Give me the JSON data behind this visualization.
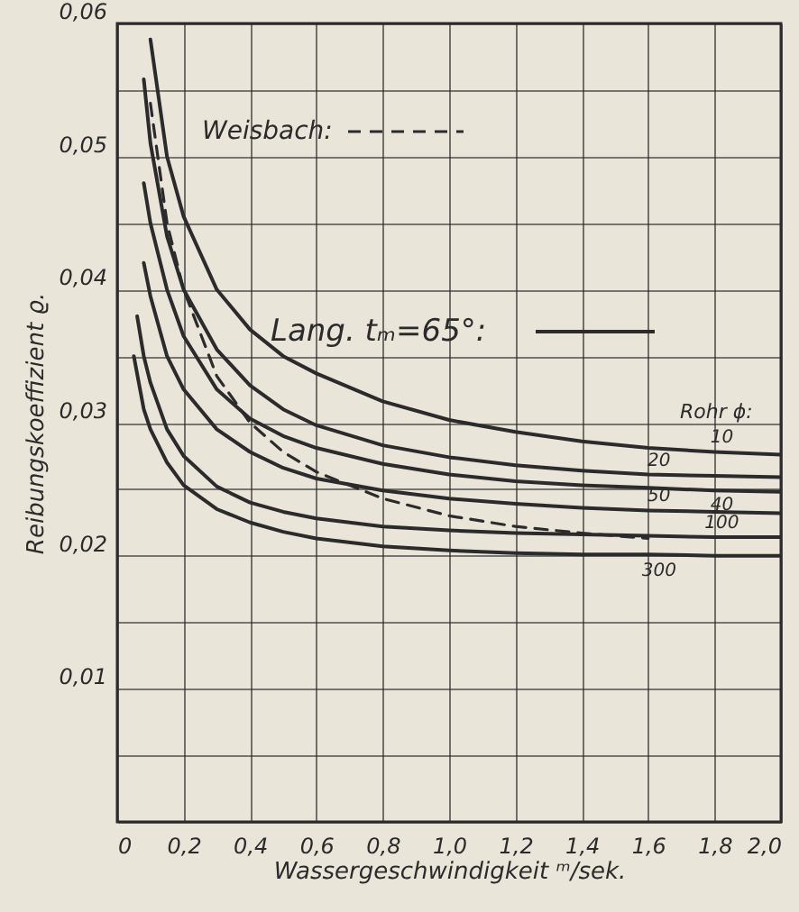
{
  "chart_data": {
    "type": "line",
    "xlabel": "Wassergeschwindigkeit ᵐ/sek.",
    "ylabel": "Reibungskoeffizient ϱ.",
    "xlim": [
      0,
      2.0
    ],
    "xticks": [
      0,
      {
        "value": 0.2,
        "label": "0,2"
      },
      {
        "value": 0.4,
        "label": "0,4"
      },
      {
        "value": 0.6,
        "label": "0,6"
      },
      {
        "value": 0.8,
        "label": "0,8"
      },
      {
        "value": 1.0,
        "label": "1,0"
      },
      {
        "value": 1.2,
        "label": "1,2"
      },
      {
        "value": 1.4,
        "label": "1,4"
      },
      {
        "value": 1.6,
        "label": "1,6"
      },
      {
        "value": 1.8,
        "label": "1,8"
      },
      {
        "value": 2.0,
        "label": "2,0"
      }
    ],
    "ylim": [
      0,
      0.06
    ],
    "yticks": [
      {
        "value": 0,
        "label": null
      },
      {
        "value": 0.005,
        "label": null
      },
      {
        "value": 0.01,
        "label": "0,01"
      },
      {
        "value": 0.015,
        "label": null
      },
      {
        "value": 0.02,
        "label": "0,02"
      },
      {
        "value": 0.025,
        "label": null
      },
      {
        "value": 0.03,
        "label": "0,03"
      },
      {
        "value": 0.035,
        "label": null
      },
      {
        "value": 0.04,
        "label": "0,04"
      },
      {
        "value": 0.045,
        "label": null
      },
      {
        "value": 0.05,
        "label": "0,05"
      },
      {
        "value": 0.055,
        "label": null
      },
      {
        "value": 0.06,
        "label": "0,06"
      }
    ],
    "grid": true,
    "annotations": [
      "Lang. tₘ=65°:",
      "Rohr ϕ:"
    ],
    "series": [
      {
        "name": "10",
        "color": "#2b2b2b",
        "x": [
          0.1,
          0.15,
          0.2,
          0.3,
          0.4,
          0.5,
          0.6,
          0.8,
          1.0,
          1.2,
          1.4,
          1.6,
          1.8,
          2.0
        ],
        "values": [
          0.0588,
          0.05,
          0.0455,
          0.04,
          0.037,
          0.035,
          0.0337,
          0.0316,
          0.0302,
          0.0293,
          0.0286,
          0.0281,
          0.0278,
          0.0276
        ]
      },
      {
        "name": "20",
        "color": "#2b2b2b",
        "x": [
          0.08,
          0.1,
          0.15,
          0.2,
          0.3,
          0.4,
          0.5,
          0.6,
          0.8,
          1.0,
          1.2,
          1.4,
          1.6,
          1.8,
          2.0
        ],
        "values": [
          0.0558,
          0.051,
          0.044,
          0.04,
          0.0355,
          0.0328,
          0.031,
          0.0298,
          0.0283,
          0.0274,
          0.0268,
          0.0264,
          0.0261,
          0.026,
          0.0259
        ]
      },
      {
        "name": "40",
        "color": "#2b2b2b",
        "x": [
          0.08,
          0.1,
          0.15,
          0.2,
          0.3,
          0.4,
          0.5,
          0.6,
          0.8,
          1.0,
          1.2,
          1.4,
          1.6,
          1.8,
          2.0
        ],
        "values": [
          0.048,
          0.045,
          0.04,
          0.0365,
          0.0325,
          0.0303,
          0.029,
          0.0281,
          0.0269,
          0.0261,
          0.0256,
          0.0253,
          0.0251,
          0.0249,
          0.0248
        ]
      },
      {
        "name": "50",
        "color": "#2b2b2b",
        "x": [
          0.08,
          0.1,
          0.15,
          0.2,
          0.3,
          0.4,
          0.5,
          0.6,
          0.8,
          1.0,
          1.2,
          1.4,
          1.6,
          1.8,
          2.0
        ],
        "values": [
          0.042,
          0.0395,
          0.035,
          0.0325,
          0.0295,
          0.0278,
          0.0266,
          0.0258,
          0.0249,
          0.0243,
          0.0239,
          0.0236,
          0.0234,
          0.0233,
          0.0232
        ]
      },
      {
        "name": "100",
        "color": "#2b2b2b",
        "x": [
          0.06,
          0.08,
          0.1,
          0.15,
          0.2,
          0.3,
          0.4,
          0.5,
          0.6,
          0.8,
          1.0,
          1.2,
          1.4,
          1.6,
          1.8,
          2.0
        ],
        "values": [
          0.038,
          0.035,
          0.033,
          0.0295,
          0.0275,
          0.0252,
          0.024,
          0.0233,
          0.0228,
          0.0222,
          0.0219,
          0.0217,
          0.0216,
          0.0215,
          0.0214,
          0.0214
        ]
      },
      {
        "name": "300",
        "color": "#2b2b2b",
        "x": [
          0.05,
          0.08,
          0.1,
          0.15,
          0.2,
          0.3,
          0.4,
          0.5,
          0.6,
          0.8,
          1.0,
          1.2,
          1.4,
          1.6,
          1.8,
          2.0
        ],
        "values": [
          0.035,
          0.031,
          0.0295,
          0.027,
          0.0253,
          0.0235,
          0.0225,
          0.0218,
          0.0213,
          0.0207,
          0.0204,
          0.0202,
          0.0201,
          0.0201,
          0.02,
          0.02
        ]
      },
      {
        "name": "Weisbach:",
        "color": "#2b2b2b",
        "line_style": "dashed",
        "x": [
          0.1,
          0.15,
          0.2,
          0.3,
          0.4,
          0.5,
          0.6,
          0.8,
          1.0,
          1.2,
          1.4,
          1.6
        ],
        "values": [
          0.054,
          0.045,
          0.04,
          0.0335,
          0.03,
          0.0278,
          0.0263,
          0.0243,
          0.023,
          0.0222,
          0.0217,
          0.0213
        ]
      }
    ]
  }
}
